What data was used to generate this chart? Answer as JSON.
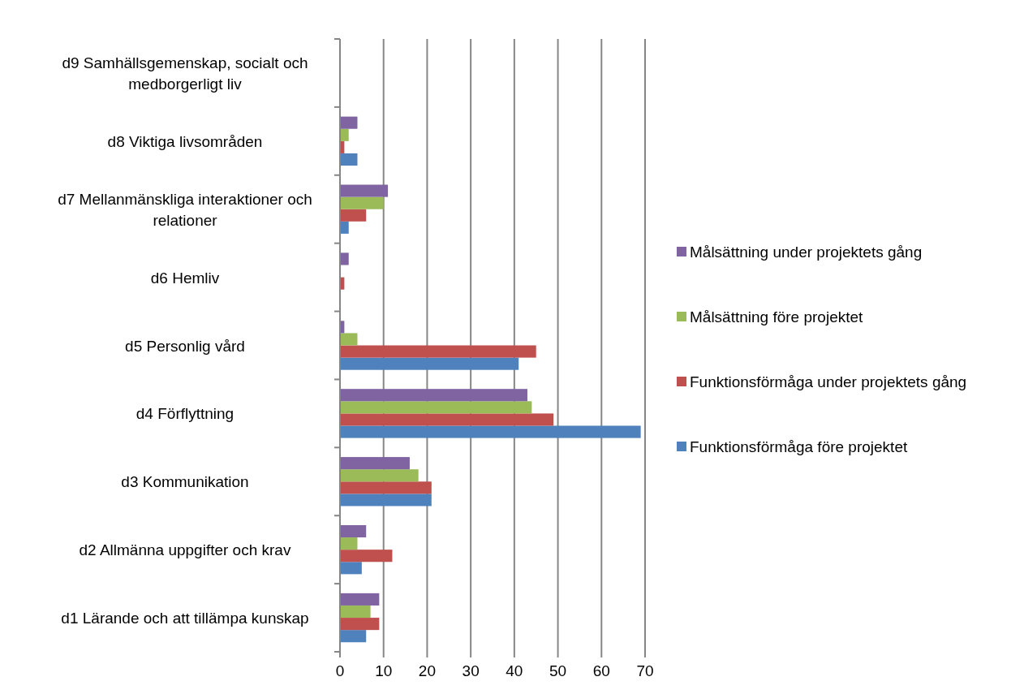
{
  "chart_data": {
    "type": "bar",
    "orientation": "horizontal",
    "categories": [
      "d9 Samhällsgemenskap, socialt och medborgerligt liv",
      "d8 Viktiga livsområden",
      "d7 Mellanmänskliga interaktioner och relationer",
      "d6 Hemliv",
      "d5 Personlig vård",
      "d4 Förflyttning",
      "d3 Kommunikation",
      "d2 Allmänna uppgifter och krav",
      "d1 Lärande och att tillämpa kunskap"
    ],
    "series": [
      {
        "name": "Funktionsförmåga före projektet",
        "color": "#4f81bd",
        "values": [
          0,
          4,
          2,
          0,
          41,
          69,
          21,
          5,
          6
        ]
      },
      {
        "name": "Funktionsförmåga under projektets gång",
        "color": "#c0504d",
        "values": [
          0,
          1,
          6,
          1,
          45,
          49,
          21,
          12,
          9
        ]
      },
      {
        "name": "Målsättning före projektet",
        "color": "#9bbb59",
        "values": [
          0,
          2,
          10,
          0,
          4,
          44,
          18,
          4,
          7
        ]
      },
      {
        "name": "Målsättning under projektets gång",
        "color": "#8064a2",
        "values": [
          0,
          4,
          11,
          2,
          1,
          43,
          16,
          6,
          9
        ]
      }
    ],
    "xlim": [
      0,
      70
    ],
    "xticks": [
      0,
      10,
      20,
      30,
      40,
      50,
      60,
      70
    ],
    "grid": "x",
    "legend": "right"
  }
}
